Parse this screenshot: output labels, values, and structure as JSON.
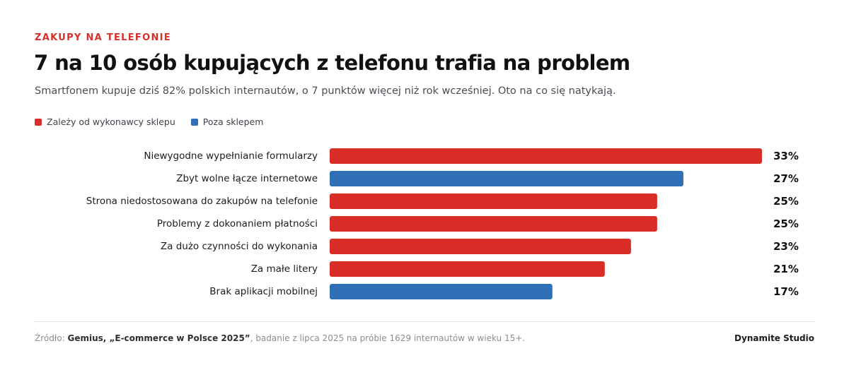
{
  "header": {
    "eyebrow": "ZAKUPY NA TELEFONIE",
    "title": "7 na 10 osób kupujących z telefonu trafia na problem",
    "subtitle": "Smartfonem kupuje dziś 82% polskich internautów, o 7 punktów więcej niż rok wcześniej. Oto na co się natykają."
  },
  "legend": {
    "items": [
      {
        "label": "Zależy od wykonawcy sklepu",
        "color": "#d92d27"
      },
      {
        "label": "Poza sklepem",
        "color": "#2f6fb5"
      }
    ]
  },
  "chart_data": {
    "type": "bar",
    "orientation": "horizontal",
    "unit": "%",
    "categories": [
      "Niewygodne wypełnianie formularzy",
      "Zbyt wolne łącze internetowe",
      "Strona niedostosowana do zakupów na telefonie",
      "Problemy z dokonaniem płatności",
      "Za dużo czynności do wykonania",
      "Za małe litery",
      "Brak aplikacji mobilnej"
    ],
    "values": [
      33,
      27,
      25,
      25,
      23,
      21,
      17
    ],
    "groups": [
      "Zależy od wykonawcy sklepu",
      "Poza sklepem",
      "Zależy od wykonawcy sklepu",
      "Zależy od wykonawcy sklepu",
      "Zależy od wykonawcy sklepu",
      "Zależy od wykonawcy sklepu",
      "Poza sklepem"
    ],
    "value_labels": [
      "33%",
      "27%",
      "25%",
      "25%",
      "23%",
      "21%",
      "17%"
    ],
    "xlim": [
      0,
      33
    ],
    "grid": false,
    "legend_position": "top-left"
  },
  "footer": {
    "source_prefix": "Źródło: ",
    "source_bold": "Gemius, „E-commerce w Polsce 2025”",
    "source_suffix": ", badanie z lipca 2025 na próbie 1629 internautów w wieku 15+.",
    "brand": "Dynamite Studio"
  }
}
